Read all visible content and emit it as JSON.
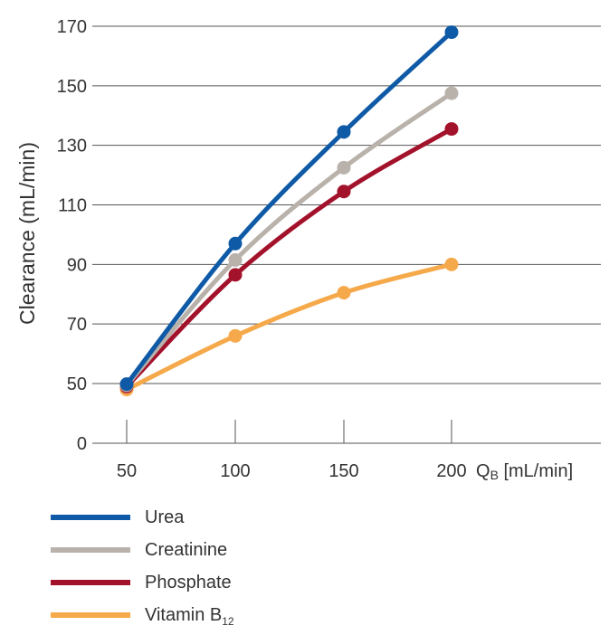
{
  "chart_data": {
    "type": "line",
    "x": [
      50,
      100,
      150,
      200
    ],
    "xlabel_main": "Q",
    "xlabel_sub": "B",
    "xlabel_unit": " [mL/min]",
    "ylabel": "Clearance (mL/min)",
    "y_ticks": [
      0,
      50,
      70,
      90,
      110,
      130,
      150,
      170
    ],
    "x_ticks": [
      "50",
      "100",
      "150",
      "200"
    ],
    "grid": "horizontal",
    "legend_placement": "bottom-left",
    "series": [
      {
        "name": "Urea",
        "color": "#0f5aa6",
        "values": [
          49.5,
          97,
          134.5,
          168
        ]
      },
      {
        "name": "Creatinine",
        "color": "#b9b2ab",
        "values": [
          48.5,
          91.5,
          122.5,
          147.5
        ]
      },
      {
        "name": "Phosphate",
        "color": "#a3122b",
        "values": [
          47.5,
          86.5,
          114.5,
          135.5
        ]
      },
      {
        "name": "Vitamin B",
        "name_sub": "12",
        "color": "#f6a94a",
        "values": [
          45,
          66,
          80.5,
          90
        ]
      }
    ]
  }
}
